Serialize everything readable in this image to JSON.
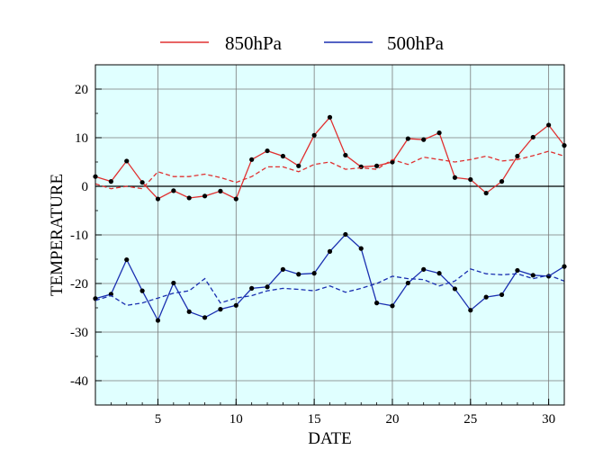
{
  "chart_data": {
    "type": "line",
    "title": "",
    "xlabel": "DATE",
    "ylabel": "TEMPERATURE",
    "xlim": [
      1,
      31
    ],
    "ylim": [
      -45,
      25
    ],
    "x_ticks": [
      5,
      10,
      15,
      20,
      25,
      30
    ],
    "y_ticks": [
      20,
      10,
      0,
      -10,
      -20,
      -30,
      -40
    ],
    "grid": true,
    "zero_line": true,
    "legend_position": "top-center",
    "legend": [
      {
        "label": "850hPa",
        "color": "#e03030"
      },
      {
        "label": "500hPa",
        "color": "#1a2fb0"
      }
    ],
    "x": [
      1,
      2,
      3,
      4,
      5,
      6,
      7,
      8,
      9,
      10,
      11,
      12,
      13,
      14,
      15,
      16,
      17,
      18,
      19,
      20,
      21,
      22,
      23,
      24,
      25,
      26,
      27,
      28,
      29,
      30,
      31
    ],
    "series": [
      {
        "name": "850hPa",
        "color": "#e03030",
        "style": "solid",
        "markers": true,
        "values": [
          2,
          1,
          5.2,
          0.8,
          -2.6,
          -0.9,
          -2.4,
          -2,
          -1,
          -2.6,
          5.5,
          7.3,
          6.2,
          4.2,
          10.5,
          14.2,
          6.4,
          4,
          4.2,
          5,
          9.8,
          9.6,
          11,
          1.8,
          1.4,
          -1.4,
          1,
          6.2,
          10.1,
          12.6,
          8.4
        ]
      },
      {
        "name": "850hPa",
        "color": "#e03030",
        "style": "dashed",
        "markers": false,
        "values": [
          0.5,
          -0.5,
          0,
          -0.5,
          3,
          2,
          2,
          2.5,
          1.8,
          0.8,
          2,
          4,
          4,
          3,
          4.5,
          5,
          3.5,
          3.8,
          3.5,
          5.5,
          4.5,
          6,
          5.5,
          5,
          5.5,
          6.2,
          5.2,
          5.5,
          6.3,
          7.2,
          6.2
        ]
      },
      {
        "name": "500hPa",
        "color": "#1a2fb0",
        "style": "solid",
        "markers": true,
        "values": [
          -23.1,
          -22.2,
          -15.1,
          -21.5,
          -27.6,
          -19.9,
          -25.8,
          -27,
          -25.3,
          -24.5,
          -21,
          -20.7,
          -17.1,
          -18.1,
          -17.9,
          -13.4,
          -9.9,
          -12.8,
          -24,
          -24.6,
          -19.9,
          -17.1,
          -17.9,
          -21.1,
          -25.5,
          -22.8,
          -22.3,
          -17.3,
          -18.3,
          -18.5,
          -16.5
        ]
      },
      {
        "name": "500hPa",
        "color": "#1a2fb0",
        "style": "dashed",
        "markers": false,
        "values": [
          -23.5,
          -22.5,
          -24.5,
          -24,
          -23,
          -22,
          -21.5,
          -19,
          -24,
          -23,
          -22.5,
          -21.5,
          -21,
          -21.2,
          -21.5,
          -20.5,
          -21.8,
          -21,
          -20,
          -18.5,
          -19,
          -19.2,
          -20.5,
          -19.5,
          -17,
          -18,
          -18.2,
          -18,
          -19,
          -18.3,
          -19.5
        ]
      }
    ]
  }
}
